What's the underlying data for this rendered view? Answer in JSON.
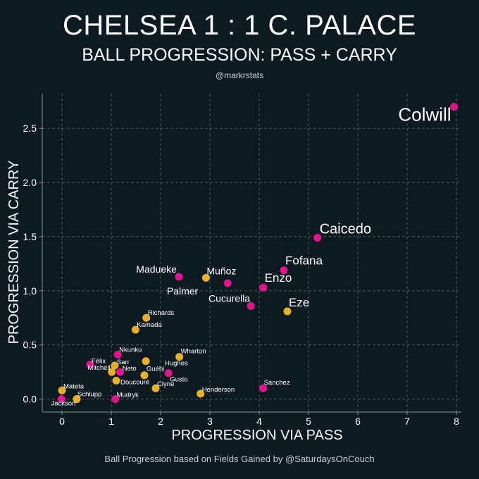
{
  "header": {
    "title": "CHELSEA 1 : 1 C. PALACE",
    "subtitle": "BALL PROGRESSION: PASS + CARRY",
    "handle": "@markrstats"
  },
  "footer": {
    "text": "Ball Progression based on Fields Gained by @SaturdaysOnCouch"
  },
  "chart_data": {
    "type": "scatter",
    "xlabel": "PROGRESSION VIA PASS",
    "ylabel": "PROGRESSION VIA CARRY",
    "xlim": [
      -0.4,
      8.1
    ],
    "ylim": [
      -0.12,
      2.82
    ],
    "xticks": [
      0,
      1,
      2,
      3,
      4,
      5,
      6,
      7,
      8
    ],
    "yticks": [
      0.0,
      0.5,
      1.0,
      1.5,
      2.0,
      2.5
    ],
    "ytick_labels": [
      "0.0",
      "0.5",
      "1.0",
      "1.5",
      "2.0",
      "2.5"
    ],
    "grid": true,
    "colors": {
      "chelsea": "#e5128e",
      "palace": "#e8b023",
      "background": "#0e1a21",
      "grid": "#5a6670"
    },
    "points": [
      {
        "name": "Colwill",
        "team": "chelsea",
        "x": 7.95,
        "y": 2.7,
        "size": "xl"
      },
      {
        "name": "Caicedo",
        "team": "chelsea",
        "x": 5.18,
        "y": 1.49,
        "size": "l"
      },
      {
        "name": "Fofana",
        "team": "chelsea",
        "x": 4.5,
        "y": 1.19,
        "size": "m"
      },
      {
        "name": "Enzo",
        "team": "chelsea",
        "x": 4.08,
        "y": 1.03,
        "size": "m"
      },
      {
        "name": "Eze",
        "team": "palace",
        "x": 4.57,
        "y": 0.81,
        "size": "m"
      },
      {
        "name": "Cucurella",
        "team": "chelsea",
        "x": 3.83,
        "y": 0.86,
        "size": "s"
      },
      {
        "name": "Muñoz",
        "team": "palace",
        "x": 2.92,
        "y": 1.12,
        "size": "s"
      },
      {
        "name": "Palmer",
        "team": "chelsea",
        "x": 3.36,
        "y": 1.07,
        "size": "s"
      },
      {
        "name": "Madueke",
        "team": "chelsea",
        "x": 2.37,
        "y": 1.13,
        "size": "s"
      },
      {
        "name": "Richards",
        "team": "palace",
        "x": 1.71,
        "y": 0.75,
        "size": "xs"
      },
      {
        "name": "Kamada",
        "team": "palace",
        "x": 1.49,
        "y": 0.64,
        "size": "xs"
      },
      {
        "name": "Nkunku",
        "team": "chelsea",
        "x": 1.13,
        "y": 0.41,
        "size": "xs"
      },
      {
        "name": "Wharton",
        "team": "palace",
        "x": 2.38,
        "y": 0.39,
        "size": "xs"
      },
      {
        "name": "Hughes",
        "team": "palace",
        "x": 1.7,
        "y": 0.35,
        "size": "xs"
      },
      {
        "name": "Sarr",
        "team": "palace",
        "x": 1.07,
        "y": 0.31,
        "size": "xs"
      },
      {
        "name": "Félix",
        "team": "chelsea",
        "x": 0.57,
        "y": 0.32,
        "size": "xs"
      },
      {
        "name": "Mitchell",
        "team": "palace",
        "x": 1.01,
        "y": 0.25,
        "size": "xs"
      },
      {
        "name": "Neto",
        "team": "chelsea",
        "x": 1.18,
        "y": 0.25,
        "size": "xs"
      },
      {
        "name": "Guéhi",
        "team": "palace",
        "x": 1.67,
        "y": 0.22,
        "size": "xs"
      },
      {
        "name": "Gusto",
        "team": "chelsea",
        "x": 2.16,
        "y": 0.24,
        "size": "xs"
      },
      {
        "name": "Doucouré",
        "team": "palace",
        "x": 1.1,
        "y": 0.17,
        "size": "xs"
      },
      {
        "name": "Clyne",
        "team": "palace",
        "x": 1.9,
        "y": 0.1,
        "size": "xs"
      },
      {
        "name": "Henderson",
        "team": "palace",
        "x": 2.81,
        "y": 0.05,
        "size": "xs"
      },
      {
        "name": "Sánchez",
        "team": "chelsea",
        "x": 4.08,
        "y": 0.1,
        "size": "xs"
      },
      {
        "name": "Mateta",
        "team": "palace",
        "x": 0.0,
        "y": 0.08,
        "size": "xs"
      },
      {
        "name": "Schlupp",
        "team": "palace",
        "x": 0.3,
        "y": 0.0,
        "size": "xs"
      },
      {
        "name": "Jackson",
        "team": "chelsea",
        "x": -0.01,
        "y": 0.0,
        "size": "xs"
      },
      {
        "name": "Mudryk",
        "team": "chelsea",
        "x": 1.08,
        "y": 0.0,
        "size": "xs"
      }
    ]
  }
}
